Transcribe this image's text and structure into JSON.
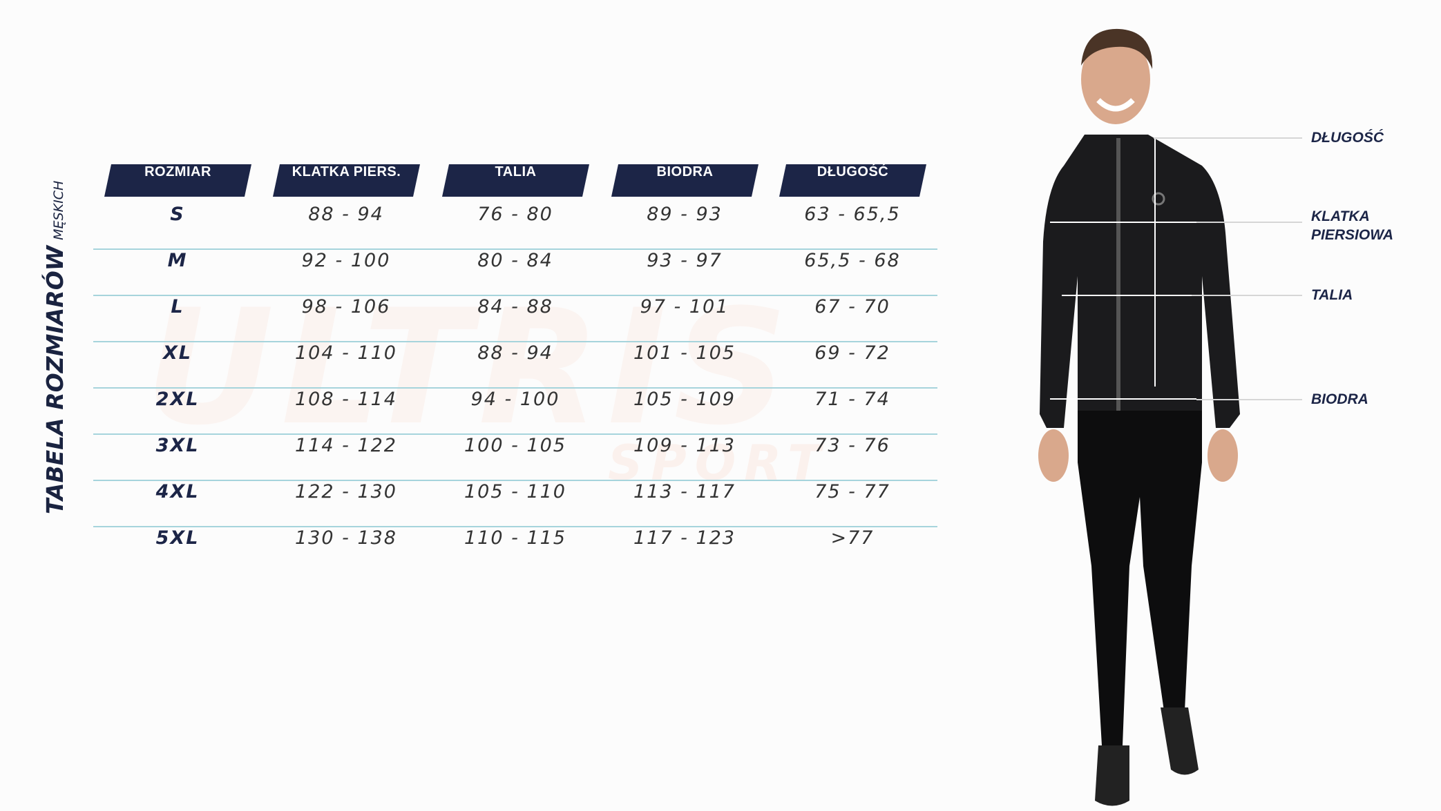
{
  "title": {
    "main": "TABELA ROZMIARÓW",
    "sub": "MĘSKICH"
  },
  "watermark": {
    "brand": "ULTRIS",
    "sub": "SPORT"
  },
  "table": {
    "headers": [
      "ROZMIAR",
      "KLATKA PIERS.",
      "TALIA",
      "BIODRA",
      "DŁUGOŚĆ"
    ],
    "rows": [
      [
        "S",
        "88 - 94",
        "76 - 80",
        "89 - 93",
        "63 - 65,5"
      ],
      [
        "M",
        "92 - 100",
        "80 - 84",
        "93 - 97",
        "65,5 - 68"
      ],
      [
        "L",
        "98 - 106",
        "84 - 88",
        "97 - 101",
        "67 - 70"
      ],
      [
        "XL",
        "104 - 110",
        "88 - 94",
        "101 - 105",
        "69 - 72"
      ],
      [
        "2XL",
        "108 - 114",
        "94 - 100",
        "105 - 109",
        "71 - 74"
      ],
      [
        "3XL",
        "114 - 122",
        "100 - 105",
        "109 - 113",
        "73 - 76"
      ],
      [
        "4XL",
        "122 - 130",
        "105 - 110",
        "113 - 117",
        "75 - 77"
      ],
      [
        "5XL",
        "130 - 138",
        "110 - 115",
        "117 - 123",
        ">77"
      ]
    ]
  },
  "measure_labels": {
    "length": "DŁUGOŚĆ",
    "chest": "KLATKA\nPIERSIOWA",
    "waist": "TALIA",
    "hips": "BIODRA"
  },
  "colors": {
    "header_bg": "#1c2547",
    "separator": "#a6d4dc",
    "text_dark": "#1c2547"
  }
}
